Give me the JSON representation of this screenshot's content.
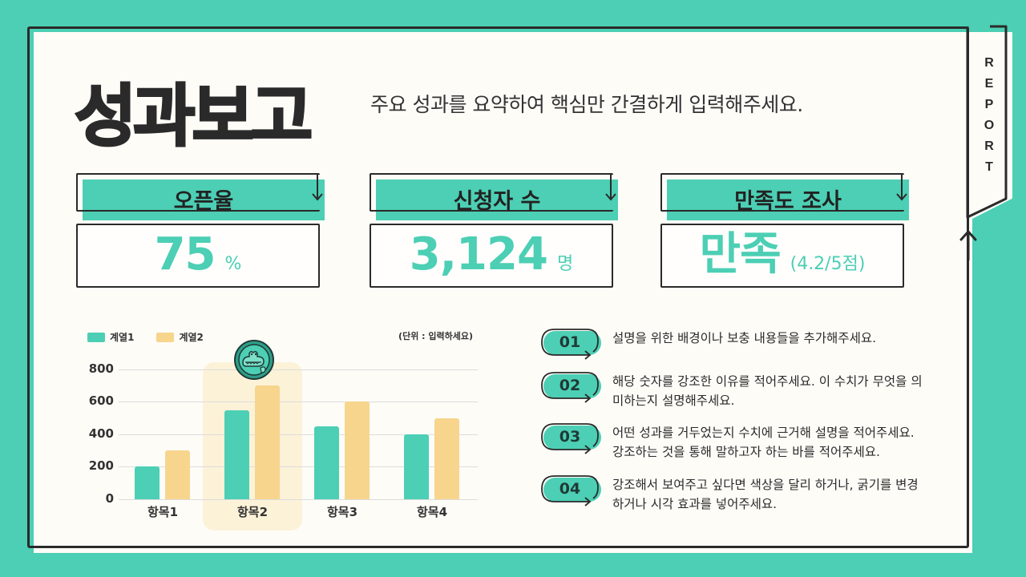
{
  "colors": {
    "background": "#4ccfb4",
    "panel": "#fefcf7",
    "accent": "#4ccfb4",
    "secondary": "#f7d58d",
    "highlight": "#fcf0d2",
    "ink": "#2a2a2a"
  },
  "header": {
    "title": "성과보고",
    "subtitle": "주요 성과를 요약하여 핵심만 간결하게 입력해주세요.",
    "side_tab_letters": [
      "R",
      "E",
      "P",
      "O",
      "R",
      "T"
    ]
  },
  "kpis": [
    {
      "label": "오픈율",
      "value": "75",
      "unit": "%"
    },
    {
      "label": "신청자 수",
      "value": "3,124",
      "unit": "명"
    },
    {
      "label": "만족도 조사",
      "value": "만족",
      "unit": "(4.2/5점)"
    }
  ],
  "chart": {
    "legend": [
      "계열1",
      "계열2"
    ],
    "unit_note": "(단위 : 입력하세요)",
    "y_ticks": [
      "800",
      "600",
      "400",
      "200",
      "0"
    ],
    "highlight_category": "항목2",
    "mascot_icon": "crocodile-thumbs-up-icon"
  },
  "chart_data": {
    "type": "bar",
    "title": "",
    "categories": [
      "항목1",
      "항목2",
      "항목3",
      "항목4"
    ],
    "series": [
      {
        "name": "계열1",
        "color": "#4ccfb4",
        "values": [
          200,
          550,
          450,
          400
        ]
      },
      {
        "name": "계열2",
        "color": "#f7d58d",
        "values": [
          300,
          700,
          600,
          500
        ]
      }
    ],
    "xlabel": "",
    "ylabel": "",
    "ylim": [
      0,
      800
    ],
    "yticks": [
      0,
      200,
      400,
      600,
      800
    ],
    "grid": true,
    "legend_position": "top-left",
    "annotation": "(단위 : 입력하세요)",
    "highlight": "항목2"
  },
  "notes": [
    {
      "num": "01",
      "text": "설명을 위한 배경이나 보충 내용들을 추가해주세요."
    },
    {
      "num": "02",
      "text": "해당 숫자를 강조한 이유를 적어주세요. 이 수치가 무엇을 의미하는지 설명해주세요."
    },
    {
      "num": "03",
      "text": "어떤 성과를 거두었는지 수치에 근거해 설명을 적어주세요. 강조하는 것을 통해 말하고자 하는 바를 적어주세요."
    },
    {
      "num": "04",
      "text": "강조해서 보여주고 싶다면 색상을 달리 하거나, 굵기를 변경하거나 시각 효과를 넣어주세요."
    }
  ]
}
